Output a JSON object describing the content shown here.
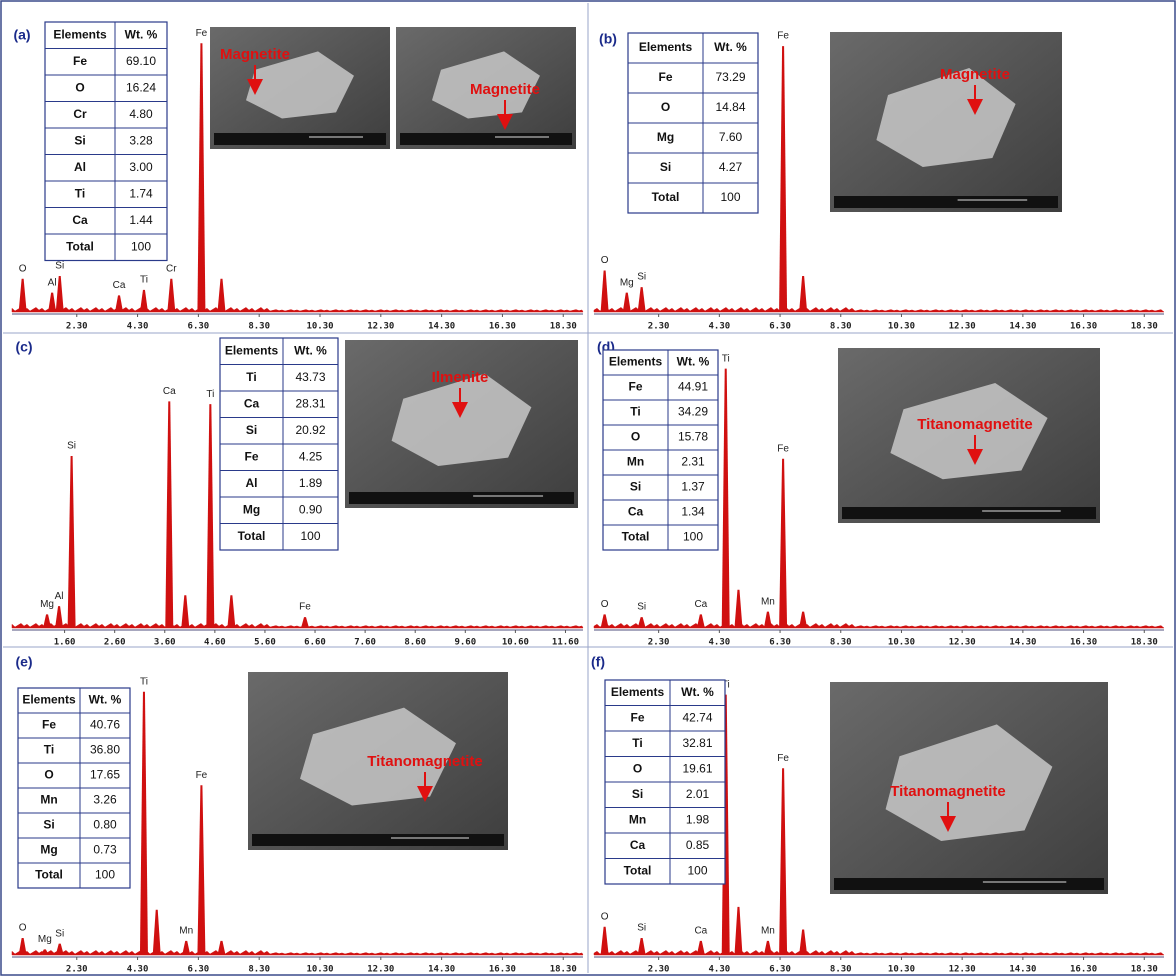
{
  "chart_data": [
    {
      "type": "spectrum",
      "label": "(a)",
      "xlim": [
        0.17,
        18.95
      ],
      "ylim": [
        0,
        100
      ],
      "xticks": [
        {
          "value": 2.3,
          "label": "2.30"
        },
        {
          "value": 4.3,
          "label": "4.30"
        },
        {
          "value": 6.3,
          "label": "6.30"
        },
        {
          "value": 8.3,
          "label": "8.30"
        },
        {
          "value": 10.3,
          "label": "10.30"
        },
        {
          "value": 12.3,
          "label": "12.30"
        },
        {
          "value": 14.3,
          "label": "14.30"
        },
        {
          "value": 16.3,
          "label": "16.30"
        },
        {
          "value": 18.3,
          "label": "18.30"
        }
      ],
      "table": {
        "header": [
          "Elements",
          "Wt. %"
        ],
        "rows": [
          [
            "Fe",
            "69.10"
          ],
          [
            "O",
            "16.24"
          ],
          [
            "Cr",
            "4.80"
          ],
          [
            "Si",
            "3.28"
          ],
          [
            "Al",
            "3.00"
          ],
          [
            "Ti",
            "1.74"
          ],
          [
            "Ca",
            "1.44"
          ],
          [
            "Total",
            "100"
          ]
        ]
      },
      "images": [
        "Magnetite",
        "Magnetite"
      ],
      "peaks": [
        {
          "label": "O",
          "x": 0.52,
          "y": 12
        },
        {
          "label": "Al",
          "x": 1.49,
          "y": 7
        },
        {
          "label": "Si",
          "x": 1.74,
          "y": 13
        },
        {
          "label": "Ca",
          "x": 3.69,
          "y": 6
        },
        {
          "label": "Ti",
          "x": 4.51,
          "y": 8
        },
        {
          "label": "Cr",
          "x": 5.41,
          "y": 12
        },
        {
          "label": "Fe",
          "x": 6.4,
          "y": 97
        },
        {
          "label": null,
          "x": 7.06,
          "y": 12
        }
      ]
    },
    {
      "type": "spectrum",
      "label": "(b)",
      "xlim": [
        0.17,
        18.95
      ],
      "ylim": [
        0,
        100
      ],
      "xticks": [
        {
          "value": 2.3,
          "label": "2.30"
        },
        {
          "value": 4.3,
          "label": "4.30"
        },
        {
          "value": 6.3,
          "label": "6.30"
        },
        {
          "value": 8.3,
          "label": "8.30"
        },
        {
          "value": 10.3,
          "label": "10.30"
        },
        {
          "value": 12.3,
          "label": "12.30"
        },
        {
          "value": 14.3,
          "label": "14.30"
        },
        {
          "value": 16.3,
          "label": "16.30"
        },
        {
          "value": 18.3,
          "label": "18.30"
        }
      ],
      "table": {
        "header": [
          "Elements",
          "Wt. %"
        ],
        "rows": [
          [
            "Fe",
            "73.29"
          ],
          [
            "O",
            "14.84"
          ],
          [
            "Mg",
            "7.60"
          ],
          [
            "Si",
            "4.27"
          ],
          [
            "Total",
            "100"
          ]
        ]
      },
      "images": [
        "Magnetite"
      ],
      "peaks": [
        {
          "label": "O",
          "x": 0.52,
          "y": 15
        },
        {
          "label": "Mg",
          "x": 1.25,
          "y": 7
        },
        {
          "label": "Si",
          "x": 1.74,
          "y": 9
        },
        {
          "label": "Fe",
          "x": 6.4,
          "y": 96
        },
        {
          "label": null,
          "x": 7.06,
          "y": 13
        }
      ]
    },
    {
      "type": "spectrum",
      "label": "(c)",
      "xlim": [
        0.55,
        11.95
      ],
      "ylim": [
        0,
        100
      ],
      "xticks": [
        {
          "value": 1.6,
          "label": "1.60"
        },
        {
          "value": 2.6,
          "label": "2.60"
        },
        {
          "value": 3.6,
          "label": "3.60"
        },
        {
          "value": 4.6,
          "label": "4.60"
        },
        {
          "value": 5.6,
          "label": "5.60"
        },
        {
          "value": 6.6,
          "label": "6.60"
        },
        {
          "value": 7.6,
          "label": "7.60"
        },
        {
          "value": 8.6,
          "label": "8.60"
        },
        {
          "value": 9.6,
          "label": "9.60"
        },
        {
          "value": 10.6,
          "label": "10.60"
        },
        {
          "value": 11.6,
          "label": "11.60"
        }
      ],
      "table": {
        "header": [
          "Elements",
          "Wt. %"
        ],
        "rows": [
          [
            "Ti",
            "43.73"
          ],
          [
            "Ca",
            "28.31"
          ],
          [
            "Si",
            "20.92"
          ],
          [
            "Fe",
            "4.25"
          ],
          [
            "Al",
            "1.89"
          ],
          [
            "Mg",
            "0.90"
          ],
          [
            "Total",
            "100"
          ]
        ]
      },
      "images": [
        "Ilmenite"
      ],
      "peaks": [
        {
          "label": "Mg",
          "x": 1.25,
          "y": 5
        },
        {
          "label": "Al",
          "x": 1.49,
          "y": 8
        },
        {
          "label": "Si",
          "x": 1.74,
          "y": 63
        },
        {
          "label": "Ca",
          "x": 3.69,
          "y": 83
        },
        {
          "label": null,
          "x": 4.01,
          "y": 12
        },
        {
          "label": "Ti",
          "x": 4.51,
          "y": 82
        },
        {
          "label": null,
          "x": 4.93,
          "y": 12
        },
        {
          "label": "Fe",
          "x": 6.4,
          "y": 4
        }
      ]
    },
    {
      "type": "spectrum",
      "label": "(d)",
      "xlim": [
        0.17,
        18.95
      ],
      "ylim": [
        0,
        100
      ],
      "xticks": [
        {
          "value": 2.3,
          "label": "2.30"
        },
        {
          "value": 4.3,
          "label": "4.30"
        },
        {
          "value": 6.3,
          "label": "6.30"
        },
        {
          "value": 8.3,
          "label": "8.30"
        },
        {
          "value": 10.3,
          "label": "10.30"
        },
        {
          "value": 12.3,
          "label": "12.30"
        },
        {
          "value": 14.3,
          "label": "14.30"
        },
        {
          "value": 16.3,
          "label": "16.30"
        },
        {
          "value": 18.3,
          "label": "18.30"
        }
      ],
      "table": {
        "header": [
          "Elements",
          "Wt. %"
        ],
        "rows": [
          [
            "Fe",
            "44.91"
          ],
          [
            "Ti",
            "34.29"
          ],
          [
            "O",
            "15.78"
          ],
          [
            "Mn",
            "2.31"
          ],
          [
            "Si",
            "1.37"
          ],
          [
            "Ca",
            "1.34"
          ],
          [
            "Total",
            "100"
          ]
        ]
      },
      "images": [
        "Titanomagnetite"
      ],
      "peaks": [
        {
          "label": "O",
          "x": 0.52,
          "y": 5
        },
        {
          "label": "Si",
          "x": 1.74,
          "y": 4
        },
        {
          "label": "Ca",
          "x": 3.69,
          "y": 5
        },
        {
          "label": "Ti",
          "x": 4.51,
          "y": 95
        },
        {
          "label": null,
          "x": 4.93,
          "y": 14
        },
        {
          "label": "Mn",
          "x": 5.9,
          "y": 6
        },
        {
          "label": "Fe",
          "x": 6.4,
          "y": 62
        },
        {
          "label": null,
          "x": 7.06,
          "y": 6
        }
      ]
    },
    {
      "type": "spectrum",
      "label": "(e)",
      "xlim": [
        0.17,
        18.95
      ],
      "ylim": [
        0,
        100
      ],
      "xticks": [
        {
          "value": 2.3,
          "label": "2.30"
        },
        {
          "value": 4.3,
          "label": "4.30"
        },
        {
          "value": 6.3,
          "label": "6.30"
        },
        {
          "value": 8.3,
          "label": "8.30"
        },
        {
          "value": 10.3,
          "label": "10.30"
        },
        {
          "value": 12.3,
          "label": "12.30"
        },
        {
          "value": 14.3,
          "label": "14.30"
        },
        {
          "value": 16.3,
          "label": "16.30"
        },
        {
          "value": 18.3,
          "label": "18.30"
        }
      ],
      "table": {
        "header": [
          "Elements",
          "Wt. %"
        ],
        "rows": [
          [
            "Fe",
            "40.76"
          ],
          [
            "Ti",
            "36.80"
          ],
          [
            "O",
            "17.65"
          ],
          [
            "Mn",
            "3.26"
          ],
          [
            "Si",
            "0.80"
          ],
          [
            "Mg",
            "0.73"
          ],
          [
            "Total",
            "100"
          ]
        ]
      },
      "images": [
        "Titanomagnetite"
      ],
      "peaks": [
        {
          "label": "O",
          "x": 0.52,
          "y": 6
        },
        {
          "label": "Mg",
          "x": 1.25,
          "y": 2
        },
        {
          "label": "Si",
          "x": 1.74,
          "y": 4
        },
        {
          "label": "Ti",
          "x": 4.51,
          "y": 93
        },
        {
          "label": null,
          "x": 4.93,
          "y": 16
        },
        {
          "label": "Mn",
          "x": 5.9,
          "y": 5
        },
        {
          "label": "Fe",
          "x": 6.4,
          "y": 60
        },
        {
          "label": null,
          "x": 7.06,
          "y": 5
        }
      ]
    },
    {
      "type": "spectrum",
      "label": "(f)",
      "xlim": [
        0.17,
        18.95
      ],
      "ylim": [
        0,
        100
      ],
      "xticks": [
        {
          "value": 2.3,
          "label": "2.30"
        },
        {
          "value": 4.3,
          "label": "4.30"
        },
        {
          "value": 6.3,
          "label": "6.30"
        },
        {
          "value": 8.3,
          "label": "8.30"
        },
        {
          "value": 10.3,
          "label": "10.30"
        },
        {
          "value": 12.3,
          "label": "12.30"
        },
        {
          "value": 14.3,
          "label": "14.30"
        },
        {
          "value": 16.3,
          "label": "16.30"
        },
        {
          "value": 18.3,
          "label": "18.30"
        }
      ],
      "table": {
        "header": [
          "Elements",
          "Wt. %"
        ],
        "rows": [
          [
            "Fe",
            "42.74"
          ],
          [
            "Ti",
            "32.81"
          ],
          [
            "O",
            "19.61"
          ],
          [
            "Si",
            "2.01"
          ],
          [
            "Mn",
            "1.98"
          ],
          [
            "Ca",
            "0.85"
          ],
          [
            "Total",
            "100"
          ]
        ]
      },
      "images": [
        "Titanomagnetite"
      ],
      "peaks": [
        {
          "label": "O",
          "x": 0.52,
          "y": 10
        },
        {
          "label": "Si",
          "x": 1.74,
          "y": 6
        },
        {
          "label": "Ca",
          "x": 3.69,
          "y": 5
        },
        {
          "label": "Ti",
          "x": 4.51,
          "y": 92
        },
        {
          "label": null,
          "x": 4.93,
          "y": 17
        },
        {
          "label": "Mn",
          "x": 5.9,
          "y": 5
        },
        {
          "label": "Fe",
          "x": 6.4,
          "y": 66
        },
        {
          "label": null,
          "x": 7.06,
          "y": 9
        }
      ]
    }
  ]
}
